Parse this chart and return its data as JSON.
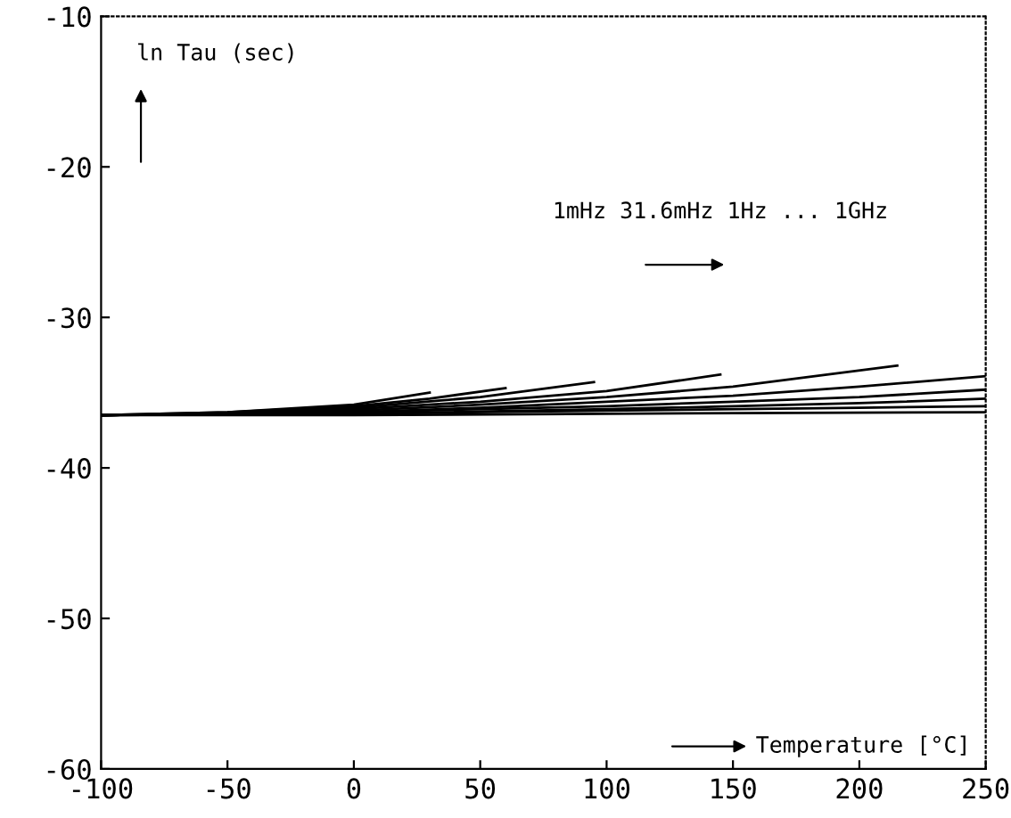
{
  "chart_data": {
    "type": "line",
    "ylabel": "ln Tau (sec)",
    "xlabel": "Temperature [°C]",
    "annotations": [
      "1mHz 31.6mHz 1Hz ... 1GHz"
    ],
    "xlim": [
      -100,
      250
    ],
    "ylim": [
      -60,
      -10
    ],
    "xticks": [
      -100,
      -50,
      0,
      50,
      100,
      150,
      200,
      250
    ],
    "yticks": [
      -60,
      -50,
      -40,
      -30,
      -20,
      -10
    ],
    "grid": false,
    "legend": false,
    "series": [
      {
        "color": "#000000",
        "x": [
          -100,
          -50,
          0,
          30
        ],
        "values": [
          -36.5,
          -36.3,
          -35.8,
          -35.0
        ]
      },
      {
        "color": "#000000",
        "x": [
          -100,
          -50,
          0,
          30,
          60
        ],
        "values": [
          -36.5,
          -36.3,
          -35.9,
          -35.4,
          -34.7
        ]
      },
      {
        "color": "#000000",
        "x": [
          -100,
          -50,
          0,
          50,
          95
        ],
        "values": [
          -36.5,
          -36.4,
          -36.0,
          -35.3,
          -34.3
        ]
      },
      {
        "color": "#000000",
        "x": [
          -100,
          -50,
          0,
          50,
          100,
          145
        ],
        "values": [
          -36.5,
          -36.4,
          -36.1,
          -35.6,
          -34.9,
          -33.8
        ]
      },
      {
        "color": "#000000",
        "x": [
          -100,
          -50,
          0,
          50,
          100,
          150,
          215
        ],
        "values": [
          -36.5,
          -36.4,
          -36.2,
          -35.8,
          -35.3,
          -34.6,
          -33.2
        ]
      },
      {
        "color": "#000000",
        "x": [
          -100,
          0,
          50,
          100,
          150,
          200,
          250
        ],
        "values": [
          -36.5,
          -36.3,
          -36.0,
          -35.6,
          -35.2,
          -34.6,
          -33.9
        ]
      },
      {
        "color": "#000000",
        "x": [
          -100,
          0,
          100,
          150,
          200,
          250
        ],
        "values": [
          -36.5,
          -36.3,
          -35.9,
          -35.6,
          -35.3,
          -34.8
        ]
      },
      {
        "color": "#000000",
        "x": [
          -100,
          0,
          100,
          200,
          250
        ],
        "values": [
          -36.5,
          -36.4,
          -36.1,
          -35.7,
          -35.4
        ]
      },
      {
        "color": "#000000",
        "x": [
          -100,
          0,
          100,
          200,
          250
        ],
        "values": [
          -36.5,
          -36.4,
          -36.2,
          -36.0,
          -35.9
        ]
      },
      {
        "color": "#000000",
        "x": [
          -100,
          0,
          100,
          250
        ],
        "values": [
          -36.5,
          -36.5,
          -36.4,
          -36.3
        ]
      }
    ]
  }
}
